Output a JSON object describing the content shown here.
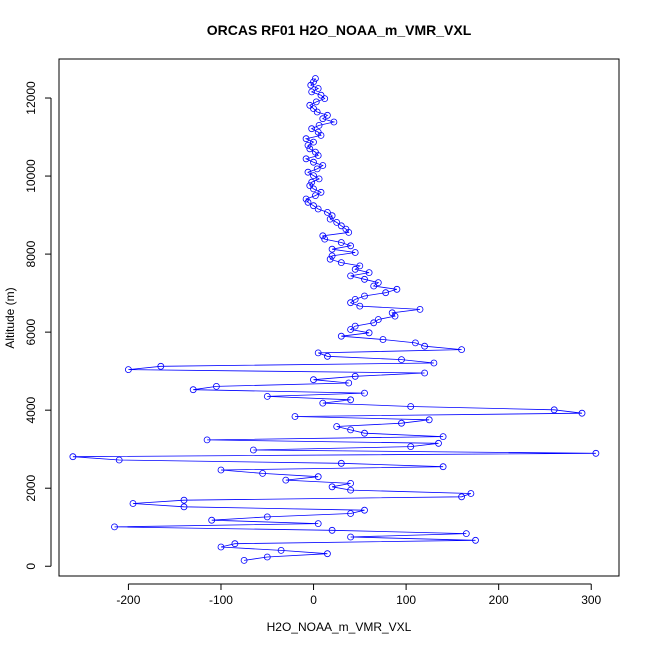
{
  "chart_data": {
    "type": "line",
    "title": "ORCAS RF01 H2O_NOAA_m_VMR_VXL",
    "xlabel": "H2O_NOAA_m_VMR_VXL",
    "ylabel": "Altitude (m)",
    "xlim": [
      -275,
      330
    ],
    "ylim": [
      -250,
      13000
    ],
    "xticks": [
      -200,
      -100,
      0,
      100,
      200,
      300
    ],
    "yticks": [
      0,
      2000,
      4000,
      6000,
      8000,
      10000,
      12000
    ],
    "grid": false,
    "markers": "open-circle",
    "series_color": "#0000ff",
    "series": [
      {
        "x": [
          2,
          0,
          -3,
          5,
          -2,
          8,
          12,
          3,
          -4,
          0,
          4,
          15,
          10,
          22,
          6,
          -2,
          5,
          8,
          -8,
          0,
          -6,
          -4,
          2,
          5,
          -8,
          0,
          10,
          4,
          -6,
          0,
          6,
          -2,
          -4,
          0,
          8,
          2,
          -8,
          -6,
          0,
          5,
          15,
          20,
          18,
          25,
          30,
          35,
          38,
          10,
          12,
          30,
          40,
          20,
          45,
          20,
          18,
          30,
          50,
          45,
          60,
          40,
          55,
          70,
          65,
          90,
          78,
          55,
          45,
          40,
          50,
          115,
          85,
          88,
          70,
          65,
          45,
          40,
          60,
          30,
          75,
          110,
          120,
          160,
          5,
          15,
          95,
          130,
          -165,
          -200,
          120,
          45,
          0,
          38,
          -105,
          -130,
          55,
          -50,
          40,
          10,
          105,
          260,
          290,
          -20,
          125,
          95,
          25,
          40,
          55,
          140,
          -115,
          135,
          105,
          -65,
          305,
          -260,
          -210,
          30,
          140,
          -100,
          -55,
          5,
          -30,
          40,
          20,
          40,
          170,
          160,
          -140,
          -195,
          -140,
          55,
          40,
          -50,
          -110,
          5,
          -215,
          20,
          165,
          40,
          175,
          -85,
          -100,
          -35,
          15,
          -50,
          -75
        ]
      }
    ]
  }
}
